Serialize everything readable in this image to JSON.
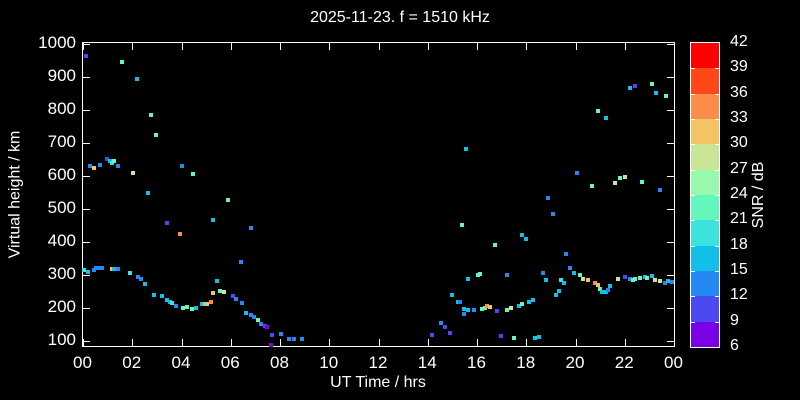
{
  "figure": {
    "background": "#000000",
    "foreground": "#ffffff"
  },
  "chart_data": {
    "type": "scatter",
    "title": "2025-11-23. f = 1510 kHz",
    "xlabel": "UT Time / hrs",
    "ylabel": "Virtual height / km",
    "colorbar_label": "SNR / dB",
    "xlim": [
      0,
      24
    ],
    "ylim": [
      80,
      1000
    ],
    "grid": false,
    "x_ticks": [
      {
        "hour": 0,
        "label": "00"
      },
      {
        "hour": 2,
        "label": "02"
      },
      {
        "hour": 4,
        "label": "04"
      },
      {
        "hour": 6,
        "label": "06"
      },
      {
        "hour": 8,
        "label": "08"
      },
      {
        "hour": 10,
        "label": "10"
      },
      {
        "hour": 12,
        "label": "12"
      },
      {
        "hour": 14,
        "label": "14"
      },
      {
        "hour": 16,
        "label": "16"
      },
      {
        "hour": 18,
        "label": "18"
      },
      {
        "hour": 20,
        "label": "20"
      },
      {
        "hour": 22,
        "label": "22"
      },
      {
        "hour": 24,
        "label": "00"
      }
    ],
    "y_ticks": [
      100,
      200,
      300,
      400,
      500,
      600,
      700,
      800,
      900,
      1000
    ],
    "colorbar_ticks": [
      42,
      39,
      36,
      33,
      30,
      27,
      24,
      21,
      18,
      15,
      12,
      9,
      6
    ],
    "palette": [
      {
        "min": 6,
        "max": 9,
        "color": "#7A00E6"
      },
      {
        "min": 9,
        "max": 12,
        "color": "#4A4AF0"
      },
      {
        "min": 12,
        "max": 15,
        "color": "#2489F2"
      },
      {
        "min": 15,
        "max": 18,
        "color": "#12BFE8"
      },
      {
        "min": 18,
        "max": 21,
        "color": "#3EE2DC"
      },
      {
        "min": 21,
        "max": 24,
        "color": "#63F7BE"
      },
      {
        "min": 24,
        "max": 27,
        "color": "#9AF8AC"
      },
      {
        "min": 27,
        "max": 30,
        "color": "#C9E696"
      },
      {
        "min": 30,
        "max": 33,
        "color": "#F2C464"
      },
      {
        "min": 33,
        "max": 36,
        "color": "#FB8C4A"
      },
      {
        "min": 36,
        "max": 39,
        "color": "#FF4719"
      },
      {
        "min": 39,
        "max": 42,
        "color": "#FF0000"
      }
    ],
    "points_format": [
      "ut_hour",
      "virtual_height_km",
      "snr_db"
    ],
    "points": [
      [
        0.12,
        964,
        10
      ],
      [
        1.55,
        944,
        22
      ],
      [
        2.17,
        895,
        16
      ],
      [
        2.74,
        784,
        22
      ],
      [
        2.96,
        724,
        22
      ],
      [
        0.26,
        631,
        13
      ],
      [
        0.43,
        624,
        31
      ],
      [
        0.68,
        633,
        13
      ],
      [
        0.96,
        653,
        10
      ],
      [
        1.06,
        646,
        16
      ],
      [
        1.14,
        639,
        19
      ],
      [
        1.25,
        645,
        22
      ],
      [
        1.42,
        629,
        13
      ],
      [
        2.01,
        608,
        28
      ],
      [
        2.62,
        548,
        16
      ],
      [
        3.38,
        457,
        10
      ],
      [
        3.92,
        425,
        34
      ],
      [
        3.99,
        631,
        13
      ],
      [
        4.46,
        606,
        22
      ],
      [
        5.27,
        466,
        16
      ],
      [
        5.85,
        528,
        22
      ],
      [
        6.39,
        339,
        13
      ],
      [
        6.8,
        443,
        13
      ],
      [
        0.03,
        314,
        19
      ],
      [
        0.19,
        310,
        16
      ],
      [
        0.43,
        315,
        13
      ],
      [
        0.51,
        320,
        13
      ],
      [
        0.65,
        322,
        13
      ],
      [
        0.74,
        320,
        13
      ],
      [
        1.15,
        317,
        31
      ],
      [
        1.25,
        319,
        16
      ],
      [
        1.42,
        319,
        13
      ],
      [
        1.9,
        307,
        19
      ],
      [
        2.22,
        293,
        13
      ],
      [
        2.32,
        289,
        13
      ],
      [
        2.48,
        272,
        16
      ],
      [
        2.88,
        240,
        16
      ],
      [
        3.18,
        236,
        16
      ],
      [
        3.4,
        225,
        16
      ],
      [
        3.5,
        219,
        16
      ],
      [
        3.6,
        214,
        19
      ],
      [
        3.74,
        207,
        13
      ],
      [
        4.05,
        200,
        22
      ],
      [
        4.19,
        202,
        22
      ],
      [
        4.39,
        197,
        22
      ],
      [
        4.57,
        200,
        16
      ],
      [
        4.8,
        211,
        16
      ],
      [
        4.92,
        213,
        22
      ],
      [
        5.03,
        212,
        31
      ],
      [
        5.17,
        217,
        34
      ],
      [
        5.26,
        245,
        31
      ],
      [
        5.44,
        281,
        16
      ],
      [
        5.55,
        251,
        22
      ],
      [
        5.7,
        249,
        28
      ],
      [
        6.07,
        237,
        10
      ],
      [
        6.18,
        226,
        13
      ],
      [
        6.43,
        216,
        13
      ],
      [
        6.6,
        186,
        16
      ],
      [
        6.8,
        178,
        13
      ],
      [
        6.93,
        172,
        13
      ],
      [
        7.09,
        165,
        22
      ],
      [
        7.2,
        152,
        13
      ],
      [
        7.38,
        146,
        10
      ],
      [
        7.45,
        142,
        7
      ],
      [
        7.62,
        88,
        7
      ],
      [
        7.65,
        117,
        10
      ],
      [
        8.0,
        120,
        13
      ],
      [
        8.35,
        107,
        13
      ],
      [
        8.56,
        107,
        13
      ],
      [
        8.87,
        105,
        13
      ],
      [
        14.16,
        119,
        10
      ],
      [
        14.5,
        155,
        13
      ],
      [
        14.7,
        142,
        10
      ],
      [
        14.9,
        125,
        10
      ],
      [
        14.97,
        238,
        16
      ],
      [
        15.2,
        218,
        16
      ],
      [
        15.3,
        219,
        13
      ],
      [
        15.46,
        181,
        13
      ],
      [
        15.47,
        198,
        16
      ],
      [
        15.6,
        195,
        16
      ],
      [
        15.87,
        195,
        13
      ],
      [
        16.2,
        198,
        22
      ],
      [
        16.3,
        201,
        22
      ],
      [
        16.4,
        207,
        34
      ],
      [
        16.5,
        204,
        31
      ],
      [
        16.8,
        192,
        10
      ],
      [
        16.94,
        114,
        10
      ],
      [
        17.2,
        195,
        22
      ],
      [
        17.35,
        201,
        28
      ],
      [
        17.48,
        108,
        22
      ],
      [
        17.7,
        207,
        16
      ],
      [
        17.8,
        213,
        22
      ],
      [
        18.1,
        219,
        16
      ],
      [
        18.24,
        225,
        16
      ],
      [
        18.35,
        109,
        16
      ],
      [
        18.5,
        113,
        16
      ],
      [
        15.37,
        451,
        22
      ],
      [
        15.55,
        683,
        16
      ],
      [
        15.6,
        287,
        16
      ],
      [
        16.0,
        301,
        22
      ],
      [
        16.1,
        304,
        22
      ],
      [
        16.7,
        391,
        22
      ],
      [
        17.2,
        301,
        13
      ],
      [
        17.8,
        422,
        16
      ],
      [
        17.95,
        410,
        16
      ],
      [
        18.66,
        305,
        13
      ],
      [
        18.8,
        286,
        16
      ],
      [
        18.85,
        533,
        13
      ],
      [
        19.07,
        485,
        13
      ],
      [
        19.2,
        240,
        16
      ],
      [
        19.3,
        252,
        16
      ],
      [
        19.4,
        284,
        19
      ],
      [
        19.5,
        275,
        16
      ],
      [
        19.6,
        365,
        13
      ],
      [
        19.74,
        320,
        13
      ],
      [
        19.9,
        306,
        16
      ],
      [
        20.06,
        610,
        13
      ],
      [
        20.15,
        299,
        22
      ],
      [
        20.3,
        288,
        28
      ],
      [
        20.5,
        285,
        31
      ],
      [
        20.67,
        570,
        22
      ],
      [
        20.76,
        276,
        34
      ],
      [
        20.9,
        269,
        31
      ],
      [
        20.9,
        797,
        22
      ],
      [
        20.97,
        257,
        22
      ],
      [
        21.05,
        250,
        16
      ],
      [
        21.2,
        249,
        16
      ],
      [
        21.2,
        775,
        16
      ],
      [
        21.3,
        255,
        13
      ],
      [
        21.4,
        266,
        16
      ],
      [
        21.58,
        579,
        28
      ],
      [
        21.7,
        288,
        28
      ],
      [
        21.8,
        593,
        22
      ],
      [
        22.0,
        294,
        10
      ],
      [
        22.0,
        598,
        28
      ],
      [
        22.2,
        288,
        13
      ],
      [
        22.2,
        867,
        16
      ],
      [
        22.3,
        285,
        22
      ],
      [
        22.4,
        288,
        22
      ],
      [
        22.4,
        873,
        10
      ],
      [
        22.6,
        290,
        22
      ],
      [
        22.7,
        582,
        22
      ],
      [
        22.8,
        294,
        16
      ],
      [
        22.9,
        292,
        22
      ],
      [
        23.1,
        297,
        16
      ],
      [
        23.1,
        879,
        22
      ],
      [
        23.2,
        285,
        28
      ],
      [
        23.25,
        853,
        16
      ],
      [
        23.4,
        282,
        28
      ],
      [
        23.4,
        558,
        13
      ],
      [
        23.6,
        275,
        13
      ],
      [
        23.66,
        843,
        22
      ],
      [
        23.75,
        281,
        16
      ],
      [
        23.9,
        278,
        13
      ]
    ]
  }
}
